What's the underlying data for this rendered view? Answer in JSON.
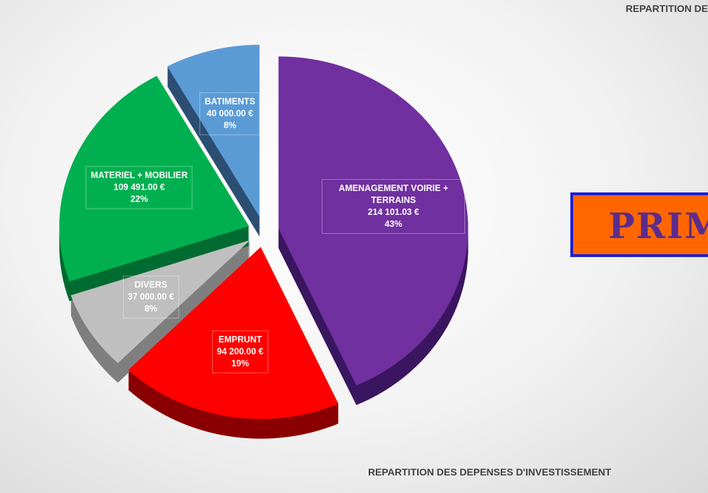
{
  "chart_data": {
    "type": "pie",
    "title": "REPARTITION DES DEPENSES D'INVESTISSEMENT",
    "header": "REPARTITION DE",
    "banner": "PRIM",
    "categories": [
      "AMENAGEMENT VOIRIE + TERRAINS",
      "EMPRUNT",
      "DIVERS",
      "MATERIEL + MOBILIER",
      "BATIMENTS"
    ],
    "values": [
      214101.03,
      94200.0,
      37000.0,
      109491.0,
      40000.0
    ],
    "value_labels": [
      "214 101.03 €",
      "94 200.00 €",
      "37 000.00 €",
      "109 491.00 €",
      "40 000.00 €"
    ],
    "percent_labels": [
      "43%",
      "19%",
      "8%",
      "22%",
      "8%"
    ],
    "colors": [
      "#7030a0",
      "#ff0000",
      "#bfbfbf",
      "#00b050",
      "#5b9bd5"
    ],
    "side_colors": [
      "#3b1660",
      "#8a0000",
      "#7f7f7f",
      "#006b30",
      "#2c4f73"
    ]
  }
}
